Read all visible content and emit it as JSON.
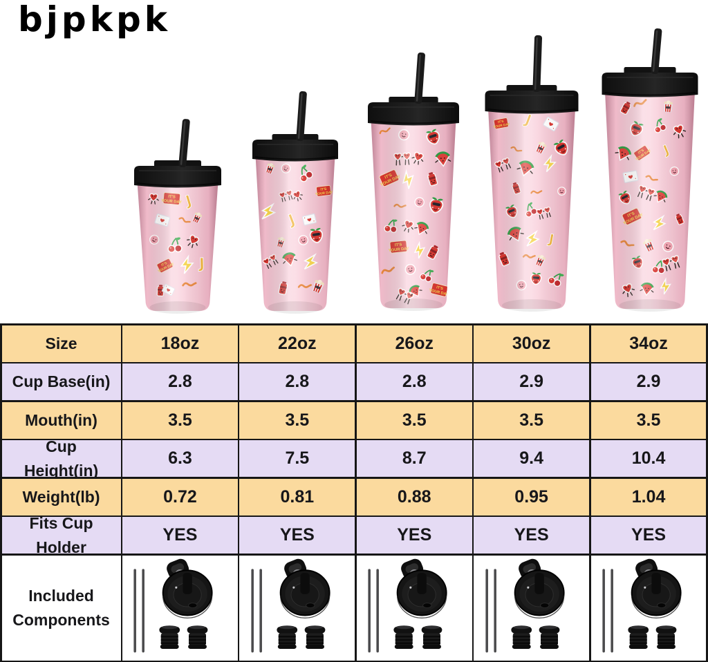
{
  "brand": {
    "logo_text": "bjpkpk"
  },
  "illustration": {
    "alt": "five pink insulated tumblers with black flip straw lids, covered in red strawberry, cherry and heart sticker pattern",
    "sizes": [
      "18oz",
      "22oz",
      "26oz",
      "30oz",
      "34oz"
    ]
  },
  "table": {
    "size_row": {
      "label": "Size",
      "values": [
        "18oz",
        "22oz",
        "26oz",
        "30oz",
        "34oz"
      ]
    },
    "spec_rows": [
      {
        "label": "Cup Base(in)",
        "values": [
          "2.8",
          "2.8",
          "2.8",
          "2.9",
          "2.9"
        ]
      },
      {
        "label": "Mouth(in)",
        "values": [
          "3.5",
          "3.5",
          "3.5",
          "3.5",
          "3.5"
        ]
      },
      {
        "label": "Cup Height(in)",
        "values": [
          "6.3",
          "7.5",
          "8.7",
          "9.4",
          "10.4"
        ]
      },
      {
        "label": "Weight(lb)",
        "values": [
          "0.72",
          "0.81",
          "0.88",
          "0.95",
          "1.04"
        ]
      },
      {
        "label": "Fits Cup Holder",
        "values": [
          "YES",
          "YES",
          "YES",
          "YES",
          "YES"
        ]
      }
    ],
    "components_row": {
      "label": "Included Components",
      "icons": [
        "straws-icon",
        "flip-lid-icon",
        "sealing-plugs-icon"
      ]
    }
  },
  "colors": {
    "row_orange": "#fbda9e",
    "row_purple": "#e5dbf4",
    "table_line": "#161616",
    "cup_pink": "#f8cdd9",
    "lid_black": "#151515",
    "sticker_red": "#d8352f",
    "leaf_green": "#2f9e44",
    "accent_yellow": "#f7d54d"
  }
}
